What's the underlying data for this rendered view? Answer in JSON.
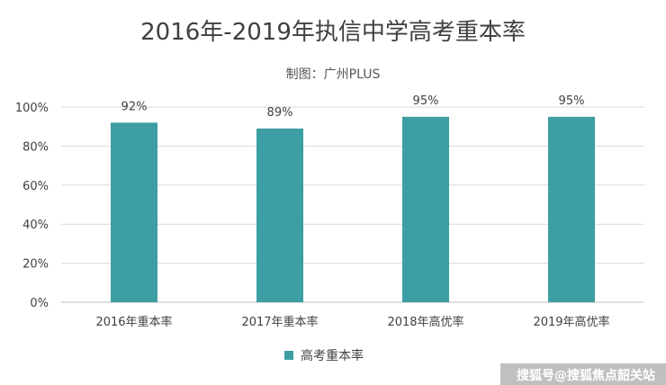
{
  "chart_data": {
    "type": "bar",
    "title": "2016年-2019年执信中学高考重本率",
    "subtitle": "制图：广州PLUS",
    "categories": [
      "2016年重本率",
      "2017年重本率",
      "2018年高优率",
      "2019年高优率"
    ],
    "series": [
      {
        "name": "高考重本率",
        "values": [
          92,
          89,
          95,
          95
        ]
      }
    ],
    "data_labels": [
      "92%",
      "89%",
      "95%",
      "95%"
    ],
    "ylim": [
      0,
      100
    ],
    "yticks": [
      "0%",
      "20%",
      "40%",
      "60%",
      "80%",
      "100%"
    ],
    "grid": true,
    "legend_position": "bottom",
    "bar_color": "#3d9ea3"
  },
  "watermark": "搜狐号@搜狐焦点韶关站"
}
